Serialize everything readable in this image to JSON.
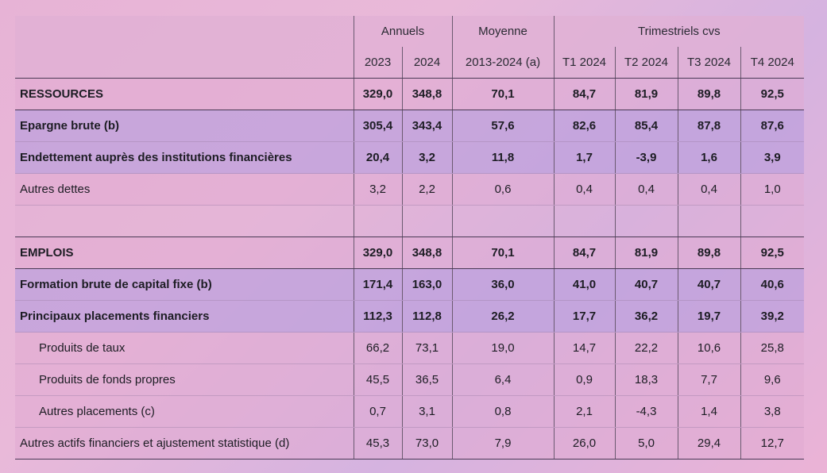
{
  "header": {
    "group_annuels": "Annuels",
    "group_moyenne": "Moyenne",
    "group_trimestriels": "Trimestriels cvs",
    "columns": [
      "2023",
      "2024",
      "2013-2024 (a)",
      "T1 2024",
      "T2 2024",
      "T3 2024",
      "T4 2024"
    ]
  },
  "rows": [
    {
      "label": "RESSOURCES",
      "values": [
        "329,0",
        "348,8",
        "70,1",
        "84,7",
        "81,9",
        "89,8",
        "92,5"
      ]
    },
    {
      "label": "Epargne brute (b)",
      "values": [
        "305,4",
        "343,4",
        "57,6",
        "82,6",
        "85,4",
        "87,8",
        "87,6"
      ]
    },
    {
      "label": "Endettement auprès des institutions financières",
      "values": [
        "20,4",
        "3,2",
        "11,8",
        "1,7",
        "-3,9",
        "1,6",
        "3,9"
      ]
    },
    {
      "label": "Autres dettes",
      "values": [
        "3,2",
        "2,2",
        "0,6",
        "0,4",
        "0,4",
        "0,4",
        "1,0"
      ]
    },
    {
      "label": "",
      "values": [
        "",
        "",
        "",
        "",
        "",
        "",
        ""
      ]
    },
    {
      "label": "EMPLOIS",
      "values": [
        "329,0",
        "348,8",
        "70,1",
        "84,7",
        "81,9",
        "89,8",
        "92,5"
      ]
    },
    {
      "label": "Formation brute de capital fixe (b)",
      "values": [
        "171,4",
        "163,0",
        "36,0",
        "41,0",
        "40,7",
        "40,7",
        "40,6"
      ]
    },
    {
      "label": "Principaux placements financiers",
      "values": [
        "112,3",
        "112,8",
        "26,2",
        "17,7",
        "36,2",
        "19,7",
        "39,2"
      ]
    },
    {
      "label": "Produits de taux",
      "values": [
        "66,2",
        "73,1",
        "19,0",
        "14,7",
        "22,2",
        "10,6",
        "25,8"
      ]
    },
    {
      "label": "Produits de fonds propres",
      "values": [
        "45,5",
        "36,5",
        "6,4",
        "0,9",
        "18,3",
        "7,7",
        "9,6"
      ]
    },
    {
      "label": "Autres placements (c)",
      "values": [
        "0,7",
        "3,1",
        "0,8",
        "2,1",
        "-4,3",
        "1,4",
        "3,8"
      ]
    },
    {
      "label": "Autres actifs financiers et ajustement statistique (d)",
      "values": [
        "45,3",
        "73,0",
        "7,9",
        "26,0",
        "5,0",
        "29,4",
        "12,7"
      ]
    }
  ]
}
